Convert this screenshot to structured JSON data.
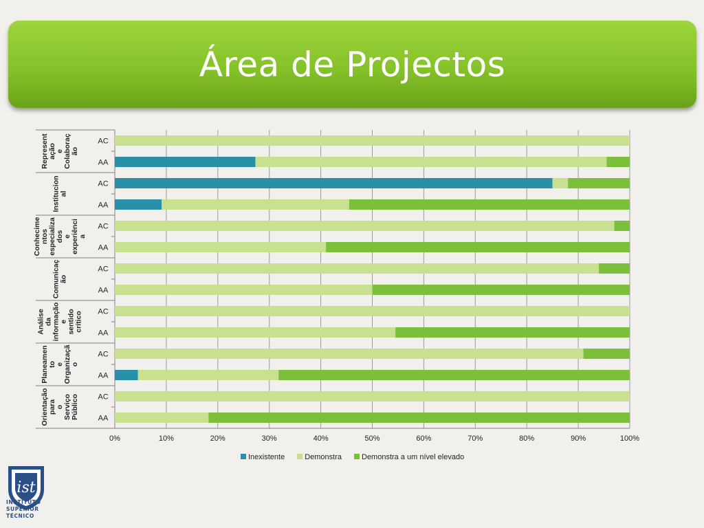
{
  "page": {
    "title": "Área de Projectos"
  },
  "logo": {
    "text_lines": [
      "INSTITUTO",
      "SUPERIOR",
      "TÉCNICO"
    ]
  },
  "colors": {
    "background": "#f2f0ec",
    "banner_green": "#8cc63f",
    "inexistente": "#2a8fa8",
    "demonstra": "#c8e190",
    "demonstra_elevado": "#7bbf3a"
  },
  "chart_data": {
    "type": "bar",
    "orientation": "horizontal",
    "stacked": "percent",
    "groups": [
      {
        "label": "Represent ação e Colaboraç ão",
        "rows": [
          {
            "label": "AC",
            "values": [
              0,
              100,
              0
            ]
          },
          {
            "label": "AA",
            "values": [
              27.3,
              68.2,
              4.5
            ]
          }
        ]
      },
      {
        "label": "Institucion al",
        "rows": [
          {
            "label": "AC",
            "values": [
              85,
              3,
              12
            ]
          },
          {
            "label": "AA",
            "values": [
              9.1,
              36.4,
              54.5
            ]
          }
        ]
      },
      {
        "label": "Conhecime ntos especializa dos e experiênci a",
        "rows": [
          {
            "label": "AC",
            "values": [
              0,
              97,
              3
            ]
          },
          {
            "label": "AA",
            "values": [
              0,
              41,
              59
            ]
          }
        ]
      },
      {
        "label": "Comunicaç ão",
        "rows": [
          {
            "label": "AC",
            "values": [
              0,
              94,
              6
            ]
          },
          {
            "label": "AA",
            "values": [
              0,
              50,
              50
            ]
          }
        ]
      },
      {
        "label": "Análise da informação e sentido crítico",
        "rows": [
          {
            "label": "AC",
            "values": [
              0,
              100,
              0
            ]
          },
          {
            "label": "AA",
            "values": [
              0,
              54.5,
              45.5
            ]
          }
        ]
      },
      {
        "label": "Planeamen to e Organizaçã o",
        "rows": [
          {
            "label": "AC",
            "values": [
              0,
              91,
              9
            ]
          },
          {
            "label": "AA",
            "values": [
              4.5,
              27.3,
              68.2
            ]
          }
        ]
      },
      {
        "label": "Orientação para o Serviço Público",
        "rows": [
          {
            "label": "AC",
            "values": [
              0,
              100,
              0
            ]
          },
          {
            "label": "AA",
            "values": [
              0,
              18.2,
              81.8
            ]
          }
        ]
      }
    ],
    "series": [
      {
        "name": "Inexistente",
        "color": "#2a8fa8"
      },
      {
        "name": "Demonstra",
        "color": "#c8e190"
      },
      {
        "name": "Demonstra a um nível elevado",
        "color": "#7bbf3a"
      }
    ],
    "x_ticks": [
      "0%",
      "10%",
      "20%",
      "30%",
      "40%",
      "50%",
      "60%",
      "70%",
      "80%",
      "90%",
      "100%"
    ],
    "xlim": [
      0,
      100
    ],
    "grid": "vertical",
    "legend": "bottom"
  }
}
